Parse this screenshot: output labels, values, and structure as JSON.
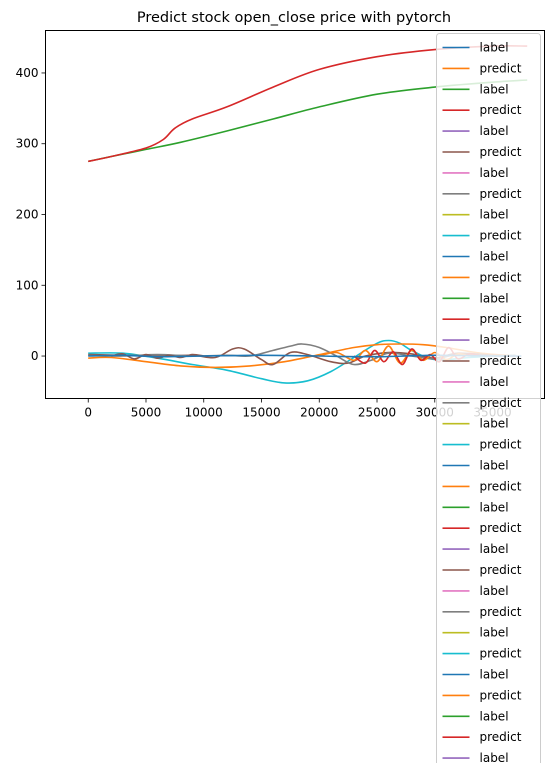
{
  "chart_data": {
    "type": "line",
    "title": "Predict stock open_close price with pytorch",
    "xlabel": "",
    "ylabel": "",
    "xlim": [
      -3700,
      39500
    ],
    "ylim": [
      -60,
      460
    ],
    "xticks": [
      0,
      5000,
      10000,
      15000,
      20000,
      25000,
      30000,
      35000
    ],
    "yticks": [
      0,
      100,
      200,
      300,
      400
    ],
    "grid": false,
    "legend": "upper-right",
    "legend_entries": [
      "label",
      "predict",
      "label",
      "predict",
      "label",
      "predict",
      "label",
      "predict",
      "label",
      "predict",
      "label",
      "predict",
      "label",
      "predict",
      "label",
      "predict",
      "label",
      "predict",
      "label",
      "predict",
      "label",
      "predict",
      "label",
      "predict",
      "label",
      "predict",
      "label",
      "predict",
      "label",
      "predict",
      "label",
      "predict",
      "label",
      "predict",
      "label",
      "predict"
    ],
    "palette": [
      "#1f77b4",
      "#ff7f0e",
      "#2ca02c",
      "#d62728",
      "#9467bd",
      "#8c564b",
      "#e377c2",
      "#7f7f7f",
      "#bcbd22",
      "#17becf"
    ],
    "series": [
      {
        "color": "#2ca02c",
        "x": [
          0,
          2000,
          5000,
          8000,
          12000,
          16000,
          20000,
          25000,
          30000,
          35000,
          38000
        ],
        "y": [
          275,
          282,
          292,
          302,
          318,
          335,
          352,
          370,
          380,
          387,
          390
        ]
      },
      {
        "color": "#d62728",
        "x": [
          0,
          2000,
          5000,
          6500,
          7500,
          9000,
          12000,
          16000,
          20000,
          25000,
          30000,
          35000,
          38000
        ],
        "y": [
          275,
          282,
          294,
          306,
          322,
          335,
          352,
          380,
          405,
          423,
          433,
          438,
          438
        ]
      },
      {
        "color": "#17becf",
        "x": [
          0,
          3000,
          6000,
          9000,
          12000,
          15000,
          17000,
          19000,
          21000,
          23000,
          25000,
          26000,
          27000,
          28000,
          30000,
          33000,
          35000,
          37000
        ],
        "y": [
          4,
          4,
          -3,
          -12,
          -20,
          -32,
          -38,
          -35,
          -22,
          -2,
          18,
          22,
          18,
          8,
          -5,
          -2,
          0,
          1
        ]
      },
      {
        "color": "#ff7f0e",
        "x": [
          0,
          2000,
          5000,
          8000,
          11000,
          14000,
          17000,
          20000,
          23000,
          25000,
          27000,
          29000,
          31000,
          34000,
          37000
        ],
        "y": [
          -3,
          -2,
          -8,
          -14,
          -16,
          -14,
          -8,
          2,
          12,
          16,
          17,
          16,
          12,
          4,
          0
        ]
      },
      {
        "color": "#8c564b",
        "x": [
          0,
          3000,
          6000,
          9000,
          11000,
          12500,
          13500,
          15000,
          16000,
          17500,
          19000,
          21000,
          22500,
          24000,
          26000,
          28000,
          30000,
          32000,
          35000,
          37000
        ],
        "y": [
          2,
          1,
          0,
          1,
          -2,
          10,
          10,
          -5,
          -12,
          5,
          2,
          -8,
          -10,
          0,
          5,
          3,
          -3,
          4,
          1,
          0
        ]
      },
      {
        "color": "#7f7f7f",
        "x": [
          0,
          3000,
          6000,
          9000,
          12000,
          14000,
          16000,
          17500,
          18500,
          20000,
          21500,
          23000,
          24500,
          26000,
          28000,
          30000,
          32000,
          35000,
          37000
        ],
        "y": [
          1,
          0,
          2,
          0,
          1,
          0,
          8,
          14,
          17,
          12,
          0,
          -12,
          -6,
          4,
          0,
          -4,
          2,
          0,
          1
        ]
      },
      {
        "color": "#ff7f0e",
        "x": [
          20000,
          21500,
          23000,
          24000,
          25000,
          26000,
          27000,
          28000,
          29000,
          30000,
          31000,
          32000,
          33000
        ],
        "y": [
          0,
          5,
          -6,
          8,
          -8,
          14,
          -10,
          8,
          -6,
          5,
          -5,
          3,
          0
        ]
      },
      {
        "color": "#d62728",
        "x": [
          23000,
          24000,
          24800,
          25600,
          26400,
          27200,
          28000,
          28800,
          29600,
          30400,
          31200,
          32000,
          33000,
          34000
        ],
        "y": [
          0,
          -10,
          8,
          -8,
          6,
          -12,
          10,
          -6,
          2,
          -8,
          12,
          -4,
          3,
          0
        ]
      },
      {
        "color": "#8c564b",
        "x": [
          2000,
          3000,
          4000,
          5000,
          6000,
          7000,
          8000,
          9000,
          10000
        ],
        "y": [
          0,
          3,
          -4,
          2,
          -3,
          1,
          -2,
          2,
          0
        ]
      },
      {
        "color": "#1f77b4",
        "x": [
          0,
          3000,
          6000,
          10000,
          15000,
          20000,
          25000,
          30000,
          35000,
          37500
        ],
        "y": [
          0,
          1,
          -1,
          0,
          1,
          0,
          -1,
          1,
          0,
          0
        ]
      }
    ]
  }
}
